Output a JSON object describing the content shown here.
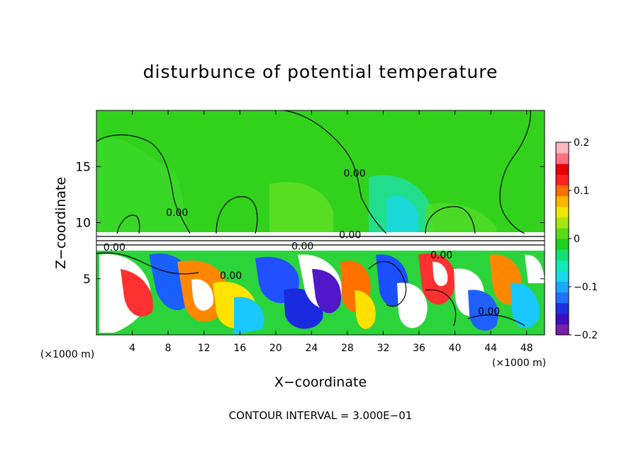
{
  "chart_data": {
    "type": "heatmap",
    "title": "disturbunce of potential temperature",
    "xlabel": "X−coordinate",
    "ylabel": "Z−coordinate",
    "x_unit_left": "(×1000 m)",
    "x_unit_right": "(×1000 m)",
    "footer": "CONTOUR INTERVAL = 3.000E−01",
    "xlim": [
      0,
      50
    ],
    "ylim": [
      0,
      20
    ],
    "x_ticks": [
      4,
      8,
      12,
      16,
      20,
      24,
      28,
      32,
      36,
      40,
      44,
      48
    ],
    "x_tick_labels": [
      "4",
      "8",
      "12",
      "16",
      "20",
      "24",
      "28",
      "32",
      "36",
      "40",
      "44",
      "48"
    ],
    "y_ticks": [
      5,
      10,
      15
    ],
    "y_tick_labels": [
      "5",
      "10",
      "15"
    ],
    "colorbar": {
      "min": -0.2,
      "max": 0.2,
      "ticks": [
        0.2,
        0.1,
        0,
        -0.1,
        -0.2
      ],
      "tick_labels": [
        "0.2",
        "0.1",
        "0",
        "−0.1",
        "−0.2"
      ],
      "colors": [
        "#7a1fa8",
        "#3a0fc0",
        "#1e30e0",
        "#2070ff",
        "#1aa8ff",
        "#19d8e8",
        "#14e8b8",
        "#12e070",
        "#18d21c",
        "#58dc18",
        "#a8e410",
        "#ece800",
        "#ffb400",
        "#ff6e00",
        "#ff2020",
        "#e80000",
        "#ff7080",
        "#ffb8c0"
      ]
    },
    "contour_labels": [
      {
        "text": "0.00",
        "x": 9.0,
        "y": 10.6
      },
      {
        "text": "0.00",
        "x": 28.8,
        "y": 14.1
      },
      {
        "text": "0.00",
        "x": 28.3,
        "y": 8.6
      },
      {
        "text": "0.00",
        "x": 2.0,
        "y": 7.5
      },
      {
        "text": "0.00",
        "x": 23.0,
        "y": 7.6
      },
      {
        "text": "0.00",
        "x": 15.0,
        "y": 5.0
      },
      {
        "text": "0.00",
        "x": 38.5,
        "y": 6.8
      },
      {
        "text": "0.00",
        "x": 43.8,
        "y": 1.8
      }
    ]
  }
}
